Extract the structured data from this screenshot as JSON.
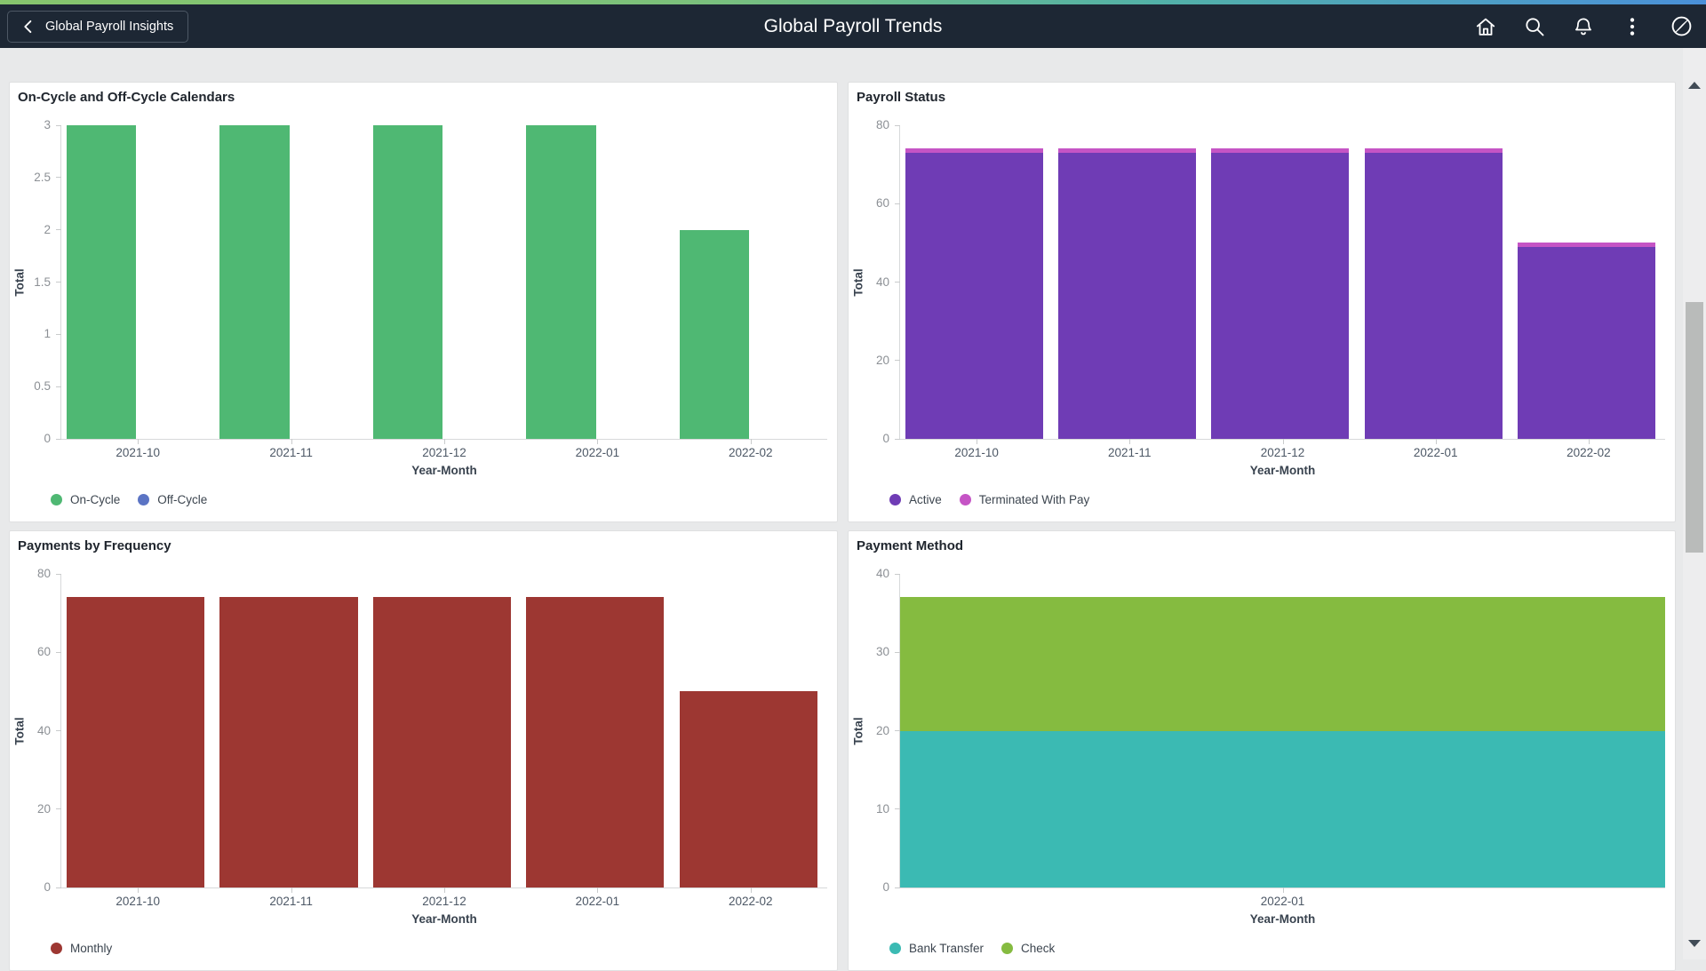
{
  "header": {
    "back_button": "Global Payroll Insights",
    "title": "Global Payroll Trends",
    "icons": [
      "home-icon",
      "search-icon",
      "notifications-icon",
      "more-actions-icon",
      "navbar-compass-icon"
    ]
  },
  "colors": {
    "header_bg": "#1d2734",
    "gradient_left": "#86c56d",
    "gradient_right": "#4a90d9",
    "page_bg": "#e8e9ea",
    "card_border": "#dfe0e1",
    "on_cycle": "#4fb873",
    "off_cycle": "#5b74c4",
    "active": "#6f3cb5",
    "terminated_with_pay": "#c554c5",
    "monthly": "#9d3732",
    "bank_transfer": "#3bbab3",
    "check": "#85bb40",
    "scroll_track": "#ededee",
    "scroll_thumb": "#b9bbba"
  },
  "chart_data": [
    {
      "type": "bar",
      "title": "On-Cycle and Off-Cycle Calendars",
      "categories": [
        "2021-10",
        "2021-11",
        "2021-12",
        "2022-01",
        "2022-02"
      ],
      "series": [
        {
          "name": "On-Cycle",
          "color": "#4fb873",
          "values": [
            3,
            3,
            3,
            3,
            2
          ]
        },
        {
          "name": "Off-Cycle",
          "color": "#5b74c4",
          "values": [
            0,
            0,
            0,
            0,
            0
          ]
        }
      ],
      "xlabel": "Year-Month",
      "ylabel": "Total",
      "ylim": [
        0,
        3
      ],
      "yticks": [
        0,
        0.5,
        1,
        1.5,
        2,
        2.5,
        3
      ],
      "bar_width": "narrow",
      "legend_position": "bottom",
      "grid": false
    },
    {
      "type": "bar",
      "title": "Payroll Status",
      "categories": [
        "2021-10",
        "2021-11",
        "2021-12",
        "2022-01",
        "2022-02"
      ],
      "series": [
        {
          "name": "Active",
          "color": "#6f3cb5",
          "values": [
            73,
            73,
            73,
            73,
            49
          ]
        },
        {
          "name": "Terminated With Pay",
          "color": "#c554c5",
          "values": [
            1,
            1,
            1,
            1,
            1
          ]
        }
      ],
      "xlabel": "Year-Month",
      "ylabel": "Total",
      "ylim": [
        0,
        80
      ],
      "yticks": [
        0,
        20,
        40,
        60,
        80
      ],
      "bar_width": "wide",
      "legend_position": "bottom",
      "grid": false
    },
    {
      "type": "bar",
      "title": "Payments by Frequency",
      "categories": [
        "2021-10",
        "2021-11",
        "2021-12",
        "2022-01",
        "2022-02"
      ],
      "series": [
        {
          "name": "Monthly",
          "color": "#9d3732",
          "values": [
            74,
            74,
            74,
            74,
            50
          ]
        }
      ],
      "xlabel": "Year-Month",
      "ylabel": "Total",
      "ylim": [
        0,
        80
      ],
      "yticks": [
        0,
        20,
        40,
        60,
        80
      ],
      "bar_width": "wide",
      "legend_position": "bottom",
      "grid": false
    },
    {
      "type": "area",
      "title": "Payment Method",
      "categories": [
        "2022-01"
      ],
      "series": [
        {
          "name": "Bank Transfer",
          "color": "#3bbab3",
          "values": [
            20
          ]
        },
        {
          "name": "Check",
          "color": "#85bb40",
          "values": [
            17
          ]
        }
      ],
      "xlabel": "Year-Month",
      "ylabel": "Total",
      "ylim": [
        0,
        40
      ],
      "yticks": [
        0,
        10,
        20,
        30,
        40
      ],
      "legend_position": "bottom",
      "grid": false
    }
  ]
}
